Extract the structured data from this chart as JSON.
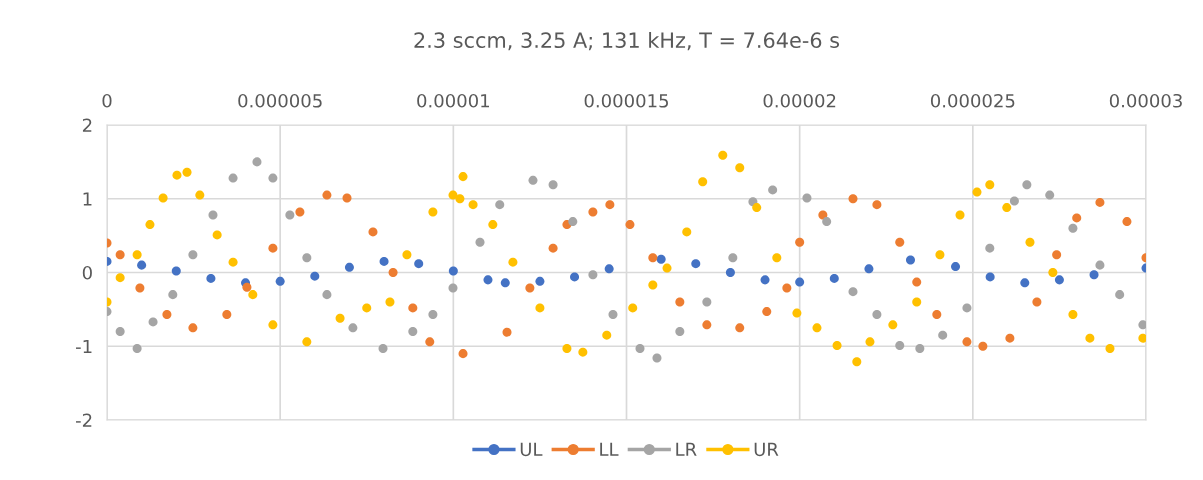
{
  "chart_data": {
    "type": "scatter",
    "title": "2.3 sccm, 3.25 A; 131 kHz, T = 7.64e-6 s",
    "xlim": [
      0,
      3e-05
    ],
    "xticks": [
      {
        "value": 0,
        "label": "0"
      },
      {
        "value": 5e-06,
        "label": "0.000005"
      },
      {
        "value": 1e-05,
        "label": "0.00001"
      },
      {
        "value": 1.5e-05,
        "label": "0.000015"
      },
      {
        "value": 2e-05,
        "label": "0.00002"
      },
      {
        "value": 2.5e-05,
        "label": "0.000025"
      },
      {
        "value": 3e-05,
        "label": "0.00003"
      }
    ],
    "ylim": [
      -2,
      2
    ],
    "yticks": [
      -2,
      -1,
      0,
      1,
      2
    ],
    "grid": true,
    "legend": "bottom",
    "marker": "circle",
    "series": [
      {
        "name": "UL",
        "color": "#4472c4",
        "x": [
          0,
          1e-06,
          2e-06,
          3e-06,
          4e-06,
          5e-06,
          6e-06,
          7e-06,
          8e-06,
          9e-06,
          1e-05,
          1.1e-05,
          1.15e-05,
          1.25e-05,
          1.35e-05,
          1.45e-05,
          1.6e-05,
          1.7e-05,
          1.8e-05,
          1.9e-05,
          2e-05,
          2.1e-05,
          2.2e-05,
          2.32e-05,
          2.45e-05,
          2.55e-05,
          2.65e-05,
          2.75e-05,
          2.85e-05,
          3e-05
        ],
        "values": [
          0.15,
          0.1,
          0.02,
          -0.08,
          -0.14,
          -0.12,
          -0.05,
          0.07,
          0.15,
          0.12,
          0.02,
          -0.1,
          -0.14,
          -0.12,
          -0.06,
          0.05,
          0.18,
          0.12,
          0.0,
          -0.1,
          -0.13,
          -0.08,
          0.05,
          0.17,
          0.08,
          -0.06,
          -0.14,
          -0.1,
          -0.03,
          0.06
        ]
      },
      {
        "name": "LL",
        "color": "#ed7d31",
        "x": [
          0,
          3.8e-07,
          9.5e-07,
          1.73e-06,
          2.48e-06,
          3.46e-06,
          4.04e-06,
          4.79e-06,
          5.57e-06,
          6.35e-06,
          6.93e-06,
          7.68e-06,
          8.26e-06,
          8.83e-06,
          9.32e-06,
          1.028e-05,
          1.155e-05,
          1.221e-05,
          1.288e-05,
          1.328e-05,
          1.403e-05,
          1.452e-05,
          1.51e-05,
          1.576e-05,
          1.654e-05,
          1.732e-05,
          1.827e-05,
          1.905e-05,
          1.963e-05,
          2e-05,
          2.067e-05,
          2.154e-05,
          2.223e-05,
          2.289e-05,
          2.338e-05,
          2.396e-05,
          2.483e-05,
          2.529e-05,
          2.607e-05,
          2.685e-05,
          2.742e-05,
          2.8e-05,
          2.867e-05,
          2.945e-05,
          3e-05
        ],
        "values": [
          0.4,
          0.24,
          -0.21,
          -0.57,
          -0.75,
          -0.57,
          -0.2,
          0.33,
          0.82,
          1.05,
          1.01,
          0.55,
          0,
          -0.48,
          -0.94,
          -1.1,
          -0.81,
          -0.21,
          0.33,
          0.65,
          0.82,
          0.92,
          0.65,
          0.2,
          -0.4,
          -0.71,
          -0.75,
          -0.53,
          -0.21,
          0.41,
          0.78,
          1.0,
          0.92,
          0.41,
          -0.13,
          -0.57,
          -0.94,
          -1.0,
          -0.89,
          -0.4,
          0.24,
          0.74,
          0.95,
          0.69,
          0.2
        ]
      },
      {
        "name": "LR",
        "color": "#a5a5a5",
        "x": [
          0,
          3.8e-07,
          8.7e-07,
          1.33e-06,
          1.9e-06,
          2.48e-06,
          3.06e-06,
          3.64e-06,
          4.33e-06,
          4.79e-06,
          5.28e-06,
          5.77e-06,
          6.35e-06,
          7.1e-06,
          7.97e-06,
          8.83e-06,
          9.41e-06,
          9.99e-06,
          1.077e-05,
          1.134e-05,
          1.23e-05,
          1.288e-05,
          1.345e-05,
          1.403e-05,
          1.461e-05,
          1.539e-05,
          1.588e-05,
          1.654e-05,
          1.732e-05,
          1.807e-05,
          1.865e-05,
          1.922e-05,
          2.021e-05,
          2.078e-05,
          2.154e-05,
          2.223e-05,
          2.289e-05,
          2.347e-05,
          2.413e-05,
          2.483e-05,
          2.549e-05,
          2.62e-05,
          2.656e-05,
          2.722e-05,
          2.789e-05,
          2.867e-05,
          2.924e-05,
          2.991e-05
        ],
        "values": [
          -0.53,
          -0.8,
          -1.03,
          -0.67,
          -0.3,
          0.24,
          0.78,
          1.28,
          1.5,
          1.28,
          0.78,
          0.2,
          -0.3,
          -0.75,
          -1.03,
          -0.8,
          -0.57,
          -0.21,
          0.41,
          0.92,
          1.25,
          1.19,
          0.69,
          -0.03,
          -0.57,
          -1.03,
          -1.16,
          -0.8,
          -0.4,
          0.2,
          0.96,
          1.12,
          1.01,
          0.69,
          -0.26,
          -0.57,
          -0.99,
          -1.03,
          -0.85,
          -0.48,
          0.33,
          0.97,
          1.19,
          1.05,
          0.6,
          0.1,
          -0.3,
          -0.71
        ]
      },
      {
        "name": "UR",
        "color": "#ffc000",
        "x": [
          0,
          3.8e-07,
          8.7e-07,
          1.24e-06,
          1.62e-06,
          2.02e-06,
          2.31e-06,
          2.68e-06,
          3.18e-06,
          3.64e-06,
          4.21e-06,
          4.79e-06,
          5.77e-06,
          6.73e-06,
          7.5e-06,
          8.17e-06,
          8.66e-06,
          9.41e-06,
          9.99e-06,
          1.019e-05,
          1.028e-05,
          1.057e-05,
          1.114e-05,
          1.172e-05,
          1.25e-05,
          1.328e-05,
          1.374e-05,
          1.443e-05,
          1.518e-05,
          1.576e-05,
          1.617e-05,
          1.674e-05,
          1.72e-05,
          1.778e-05,
          1.827e-05,
          1.876e-05,
          1.934e-05,
          1.992e-05,
          2.05e-05,
          2.108e-05,
          2.165e-05,
          2.203e-05,
          2.269e-05,
          2.338e-05,
          2.405e-05,
          2.463e-05,
          2.512e-05,
          2.549e-05,
          2.598e-05,
          2.665e-05,
          2.731e-05,
          2.789e-05,
          2.838e-05,
          2.896e-05,
          2.991e-05
        ],
        "values": [
          -0.4,
          -0.07,
          0.24,
          0.65,
          1.01,
          1.32,
          1.36,
          1.05,
          0.51,
          0.14,
          -0.3,
          -0.71,
          -0.94,
          -0.62,
          -0.48,
          -0.4,
          0.24,
          0.82,
          1.05,
          1.0,
          1.3,
          0.92,
          0.65,
          0.14,
          -0.48,
          -1.03,
          -1.08,
          -0.85,
          -0.48,
          -0.17,
          0.06,
          0.55,
          1.23,
          1.59,
          1.42,
          0.88,
          0.2,
          -0.55,
          -0.75,
          -0.99,
          -1.21,
          -0.94,
          -0.71,
          -0.4,
          0.24,
          0.78,
          1.09,
          1.19,
          0.88,
          0.41,
          0,
          -0.57,
          -0.89,
          -1.03,
          -0.89
        ]
      }
    ]
  }
}
